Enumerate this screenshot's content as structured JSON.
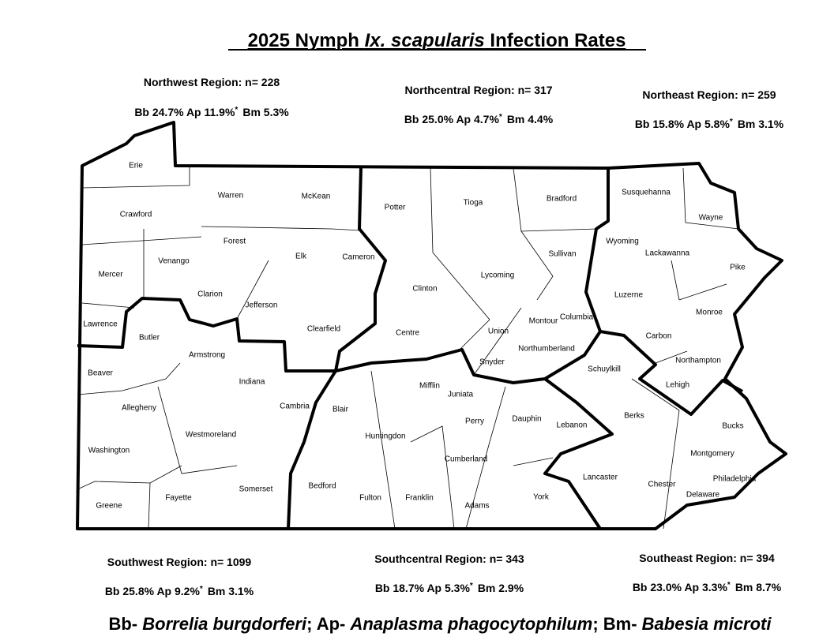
{
  "title": {
    "lead": "2025 Nymph",
    "species": "Ix. scapularis",
    "rest": "Infection Rates"
  },
  "regions": [
    {
      "label": "Northwest Region: n= 228",
      "bb": "Bb 24.7%",
      "ap": "Ap 11.9%",
      "note": "*",
      "bm": "Bm 5.3%"
    },
    {
      "label": "Northcentral Region: n= 317",
      "bb": "Bb  25.0%",
      "ap": "Ap  4.7%",
      "note": "*",
      "bm": "Bm 4.4%"
    },
    {
      "label": "Northeast Region: n= 259",
      "bb": "Bb 15.8%",
      "ap": "Ap 5.8%",
      "note": "*",
      "bm": "Bm 3.1%"
    },
    {
      "label": "Southwest Region: n= 1099",
      "bb": "Bb 25.8%",
      "ap": "Ap 9.2%",
      "note": "*",
      "bm": "Bm 3.1%"
    },
    {
      "label": "Southcentral Region: n= 343",
      "bb": "Bb 18.7%",
      "ap": "Ap 5.3%",
      "note": "*",
      "bm": "Bm 2.9%"
    },
    {
      "label": "Southeast Region: n= 394",
      "bb": "Bb 23.0%",
      "ap": "Ap 3.3%",
      "note": "*",
      "bm": "Bm 8.7%"
    }
  ],
  "counties": [
    "Erie",
    "Crawford",
    "Warren",
    "McKean",
    "Potter",
    "Tioga",
    "Bradford",
    "Susquehanna",
    "Wayne",
    "Forest",
    "Venango",
    "Elk",
    "Cameron",
    "Mercer",
    "Clarion",
    "Jefferson",
    "Clearfield",
    "Clinton",
    "Lycoming",
    "Sullivan",
    "Wyoming",
    "Lackawanna",
    "Pike",
    "Lawrence",
    "Butler",
    "Armstrong",
    "Centre",
    "Union",
    "Montour",
    "Columbia",
    "Luzerne",
    "Monroe",
    "Carbon",
    "Northumberland",
    "Snyder",
    "Northampton",
    "Lehigh",
    "Schuylkill",
    "Beaver",
    "Indiana",
    "Cambria",
    "Mifflin",
    "Juniata",
    "Allegheny",
    "Blair",
    "Perry",
    "Dauphin",
    "Lebanon",
    "Berks",
    "Bucks",
    "Westmoreland",
    "Huntingdon",
    "Washington",
    "Cumberland",
    "Montgomery",
    "Lancaster",
    "Chester",
    "Philadelphia",
    "Delaware",
    "Greene",
    "Fayette",
    "Somerset",
    "Bedford",
    "Fulton",
    "Franklin",
    "Adams",
    "York"
  ],
  "legend": [
    {
      "abbr": "Bb-",
      "name": "Borrelia burgdorferi"
    },
    {
      "abbr": "; Ap-",
      "name": "Anaplasma phagocytophilum"
    },
    {
      "abbr": "; Bm-",
      "name": "Babesia microti"
    }
  ]
}
